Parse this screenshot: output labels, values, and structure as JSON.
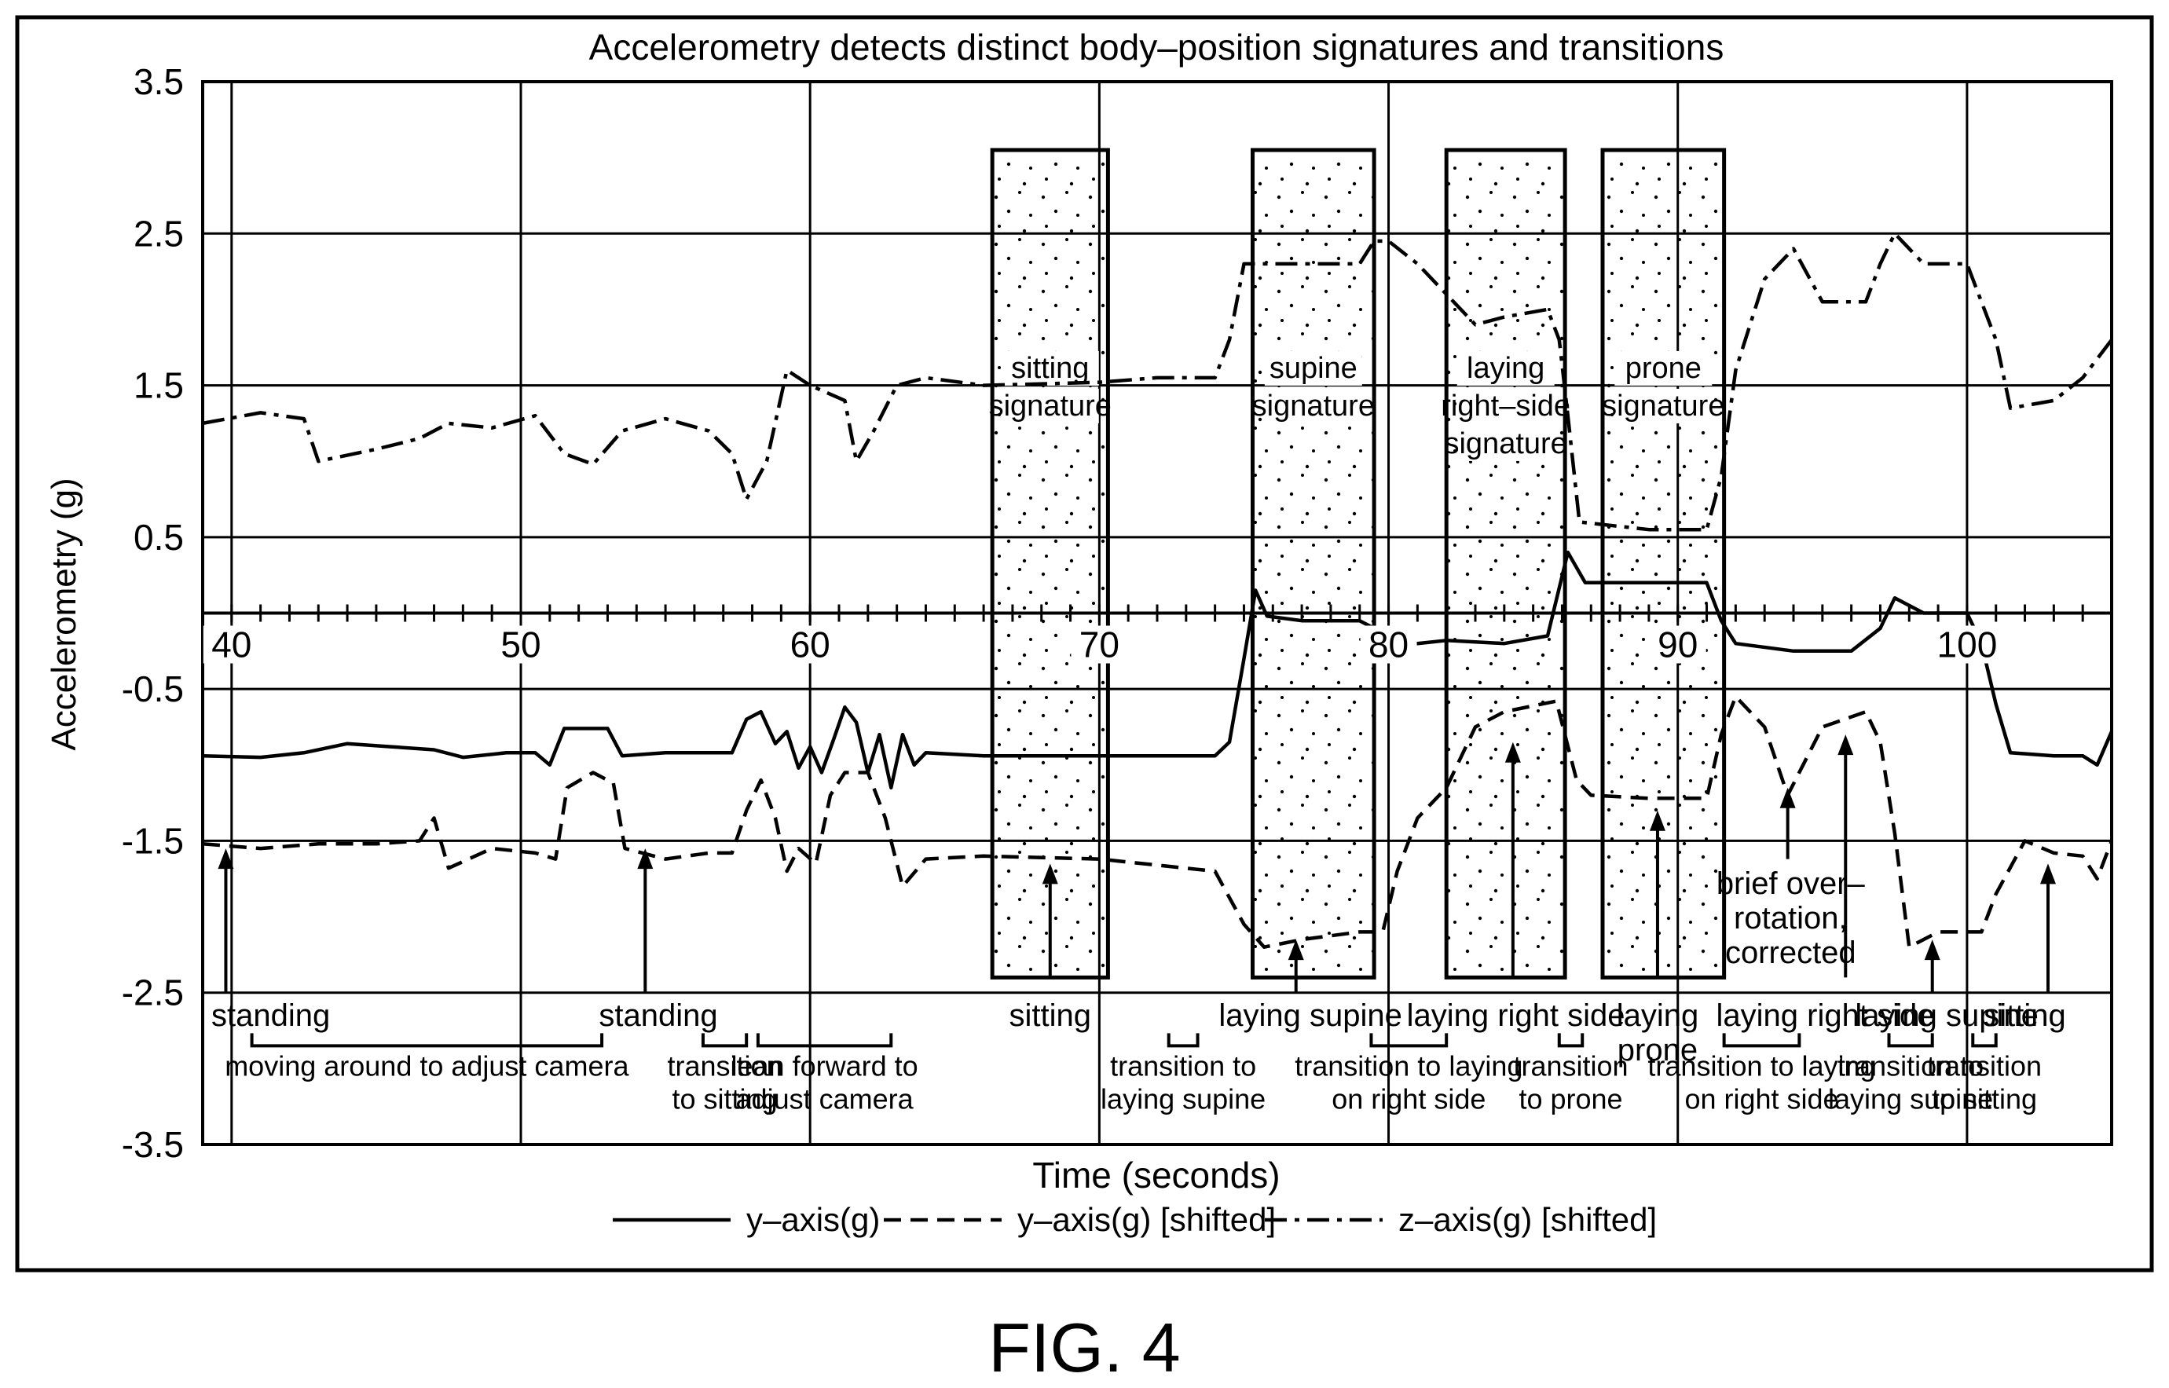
{
  "figure_label": "FIG. 4",
  "chart_data": {
    "type": "line",
    "title": "Accelerometry detects distinct body–position signatures and transitions",
    "xlabel": "Time  (seconds)",
    "ylabel": "Accelerometry (g)",
    "xlim": [
      39,
      105
    ],
    "ylim": [
      -3.5,
      3.5
    ],
    "x_ticks": [
      40,
      50,
      60,
      70,
      80,
      90,
      100
    ],
    "x_tick_labels": [
      "40",
      "50",
      "60",
      "70",
      "80",
      "90",
      "100"
    ],
    "y_ticks": [
      3.5,
      2.5,
      1.5,
      0.5,
      -0.5,
      -1.5,
      -2.5,
      -3.5
    ],
    "y_tick_labels": [
      "3.5",
      "2.5",
      "1.5",
      "0.5",
      "-0.5",
      "-1.5",
      "-2.5",
      "-3.5"
    ],
    "grid": true,
    "legend_position": "bottom-center",
    "series": [
      {
        "name": "y–axis(g)",
        "style": "solid",
        "points": [
          [
            39,
            -0.94
          ],
          [
            41,
            -0.95
          ],
          [
            42.5,
            -0.92
          ],
          [
            44,
            -0.86
          ],
          [
            45.5,
            -0.88
          ],
          [
            47,
            -0.9
          ],
          [
            48,
            -0.95
          ],
          [
            49.5,
            -0.92
          ],
          [
            50.5,
            -0.92
          ],
          [
            51,
            -1.0
          ],
          [
            51.5,
            -0.76
          ],
          [
            53,
            -0.76
          ],
          [
            53.5,
            -0.94
          ],
          [
            55,
            -0.92
          ],
          [
            56.5,
            -0.92
          ],
          [
            57.3,
            -0.92
          ],
          [
            57.8,
            -0.7
          ],
          [
            58.3,
            -0.65
          ],
          [
            58.8,
            -0.86
          ],
          [
            59.2,
            -0.78
          ],
          [
            59.6,
            -1.02
          ],
          [
            60,
            -0.88
          ],
          [
            60.4,
            -1.05
          ],
          [
            60.8,
            -0.84
          ],
          [
            61.2,
            -0.62
          ],
          [
            61.6,
            -0.72
          ],
          [
            62,
            -1.05
          ],
          [
            62.4,
            -0.8
          ],
          [
            62.8,
            -1.15
          ],
          [
            63.2,
            -0.8
          ],
          [
            63.6,
            -1.0
          ],
          [
            64,
            -0.92
          ],
          [
            66,
            -0.94
          ],
          [
            70,
            -0.94
          ],
          [
            74,
            -0.94
          ],
          [
            74.5,
            -0.85
          ],
          [
            75,
            -0.3
          ],
          [
            75.4,
            0.15
          ],
          [
            75.8,
            -0.02
          ],
          [
            77,
            -0.05
          ],
          [
            79,
            -0.05
          ],
          [
            79.5,
            -0.1
          ],
          [
            80,
            -0.2
          ],
          [
            81,
            -0.2
          ],
          [
            82,
            -0.18
          ],
          [
            84,
            -0.2
          ],
          [
            85.5,
            -0.15
          ],
          [
            86.2,
            0.4
          ],
          [
            86.8,
            0.2
          ],
          [
            89,
            0.2
          ],
          [
            91,
            0.2
          ],
          [
            91.5,
            -0.05
          ],
          [
            92,
            -0.2
          ],
          [
            94,
            -0.25
          ],
          [
            96,
            -0.25
          ],
          [
            97,
            -0.1
          ],
          [
            97.5,
            0.1
          ],
          [
            98.5,
            0.0
          ],
          [
            100,
            0.0
          ],
          [
            100.5,
            -0.2
          ],
          [
            101,
            -0.6
          ],
          [
            101.5,
            -0.92
          ],
          [
            103,
            -0.94
          ],
          [
            104,
            -0.94
          ],
          [
            104.5,
            -1.0
          ],
          [
            105,
            -0.78
          ]
        ]
      },
      {
        "name": "y–axis(g) [shifted]",
        "style": "dashed",
        "points": [
          [
            39,
            -1.52
          ],
          [
            41,
            -1.55
          ],
          [
            43,
            -1.52
          ],
          [
            45,
            -1.52
          ],
          [
            46.5,
            -1.5
          ],
          [
            47,
            -1.35
          ],
          [
            47.5,
            -1.68
          ],
          [
            49,
            -1.55
          ],
          [
            50.5,
            -1.58
          ],
          [
            51.2,
            -1.62
          ],
          [
            51.6,
            -1.15
          ],
          [
            52.5,
            -1.05
          ],
          [
            53.2,
            -1.12
          ],
          [
            53.6,
            -1.55
          ],
          [
            55,
            -1.62
          ],
          [
            56.5,
            -1.58
          ],
          [
            57.3,
            -1.58
          ],
          [
            57.8,
            -1.3
          ],
          [
            58.3,
            -1.1
          ],
          [
            58.8,
            -1.35
          ],
          [
            59.2,
            -1.7
          ],
          [
            59.6,
            -1.55
          ],
          [
            60.2,
            -1.65
          ],
          [
            60.7,
            -1.2
          ],
          [
            61.2,
            -1.05
          ],
          [
            62,
            -1.05
          ],
          [
            62.6,
            -1.35
          ],
          [
            63.2,
            -1.8
          ],
          [
            64,
            -1.62
          ],
          [
            66,
            -1.6
          ],
          [
            70,
            -1.62
          ],
          [
            74,
            -1.7
          ],
          [
            75,
            -2.05
          ],
          [
            75.7,
            -2.2
          ],
          [
            77,
            -2.15
          ],
          [
            79,
            -2.1
          ],
          [
            79.8,
            -2.1
          ],
          [
            80.3,
            -1.7
          ],
          [
            81,
            -1.35
          ],
          [
            82,
            -1.15
          ],
          [
            83,
            -0.75
          ],
          [
            84,
            -0.65
          ],
          [
            85.8,
            -0.58
          ],
          [
            86.5,
            -1.1
          ],
          [
            87,
            -1.2
          ],
          [
            89,
            -1.22
          ],
          [
            91,
            -1.22
          ],
          [
            91.5,
            -0.8
          ],
          [
            92,
            -0.55
          ],
          [
            93,
            -0.75
          ],
          [
            93.8,
            -1.2
          ],
          [
            95,
            -0.75
          ],
          [
            96.5,
            -0.65
          ],
          [
            97,
            -0.85
          ],
          [
            97.5,
            -1.45
          ],
          [
            98,
            -2.2
          ],
          [
            99,
            -2.1
          ],
          [
            100.5,
            -2.1
          ],
          [
            101,
            -1.85
          ],
          [
            102,
            -1.5
          ],
          [
            103,
            -1.58
          ],
          [
            104,
            -1.6
          ],
          [
            104.5,
            -1.75
          ],
          [
            105,
            -1.5
          ]
        ]
      },
      {
        "name": "z–axis(g) [shifted]",
        "style": "dashdot",
        "points": [
          [
            39,
            1.25
          ],
          [
            41,
            1.32
          ],
          [
            42.5,
            1.28
          ],
          [
            43,
            1.0
          ],
          [
            45,
            1.08
          ],
          [
            46.5,
            1.15
          ],
          [
            47.5,
            1.25
          ],
          [
            49,
            1.22
          ],
          [
            50.5,
            1.3
          ],
          [
            51.5,
            1.05
          ],
          [
            52.5,
            0.98
          ],
          [
            53.5,
            1.2
          ],
          [
            55,
            1.28
          ],
          [
            56.5,
            1.2
          ],
          [
            57.3,
            1.05
          ],
          [
            57.8,
            0.75
          ],
          [
            58.5,
            1.0
          ],
          [
            59.2,
            1.6
          ],
          [
            60,
            1.5
          ],
          [
            61.2,
            1.4
          ],
          [
            61.6,
            1.0
          ],
          [
            62.2,
            1.2
          ],
          [
            63,
            1.5
          ],
          [
            64,
            1.55
          ],
          [
            66,
            1.5
          ],
          [
            70,
            1.52
          ],
          [
            72,
            1.55
          ],
          [
            74,
            1.55
          ],
          [
            74.5,
            1.8
          ],
          [
            75,
            2.3
          ],
          [
            75.5,
            2.3
          ],
          [
            77,
            2.3
          ],
          [
            79,
            2.3
          ],
          [
            79.5,
            2.45
          ],
          [
            80,
            2.45
          ],
          [
            81,
            2.3
          ],
          [
            82,
            2.1
          ],
          [
            83,
            1.9
          ],
          [
            84,
            1.95
          ],
          [
            85.5,
            2.0
          ],
          [
            85.9,
            1.8
          ],
          [
            86.2,
            1.3
          ],
          [
            86.6,
            0.6
          ],
          [
            89,
            0.55
          ],
          [
            91,
            0.55
          ],
          [
            91.5,
            0.9
          ],
          [
            92,
            1.6
          ],
          [
            93,
            2.2
          ],
          [
            94,
            2.4
          ],
          [
            95,
            2.05
          ],
          [
            96.5,
            2.05
          ],
          [
            97,
            2.3
          ],
          [
            97.5,
            2.5
          ],
          [
            98.5,
            2.3
          ],
          [
            100,
            2.3
          ],
          [
            100.5,
            2.05
          ],
          [
            101,
            1.8
          ],
          [
            101.5,
            1.35
          ],
          [
            103,
            1.4
          ],
          [
            104,
            1.55
          ],
          [
            105,
            1.8
          ]
        ]
      }
    ],
    "signature_boxes": [
      {
        "x0": 66.3,
        "x1": 70.3,
        "y0": -2.4,
        "y1": 3.05,
        "label_lines": [
          "sitting",
          "signature"
        ]
      },
      {
        "x0": 75.3,
        "x1": 79.5,
        "y0": -2.4,
        "y1": 3.05,
        "label_lines": [
          "supine",
          "signature"
        ]
      },
      {
        "x0": 82.0,
        "x1": 86.1,
        "y0": -2.4,
        "y1": 3.05,
        "label_lines": [
          "laying",
          "right–side",
          "signature"
        ]
      },
      {
        "x0": 87.4,
        "x1": 91.6,
        "y0": -2.4,
        "y1": 3.05,
        "label_lines": [
          "prone",
          "signature"
        ]
      }
    ],
    "arrows": [
      {
        "x": 39.8,
        "y_from": -2.5,
        "y_to": -1.55
      },
      {
        "x": 54.3,
        "y_from": -2.5,
        "y_to": -1.55
      },
      {
        "x": 68.3,
        "y_from": -2.4,
        "y_to": -1.65
      },
      {
        "x": 76.8,
        "y_from": -2.5,
        "y_to": -2.15
      },
      {
        "x": 84.3,
        "y_from": -2.4,
        "y_to": -0.85
      },
      {
        "x": 89.3,
        "y_from": -2.4,
        "y_to": -1.3
      },
      {
        "x": 93.8,
        "y_from": -1.62,
        "y_to": -1.15
      },
      {
        "x": 95.8,
        "y_from": -2.4,
        "y_to": -0.8
      },
      {
        "x": 98.8,
        "y_from": -2.5,
        "y_to": -2.15
      },
      {
        "x": 102.8,
        "y_from": -2.5,
        "y_to": -1.65
      }
    ],
    "position_labels": [
      {
        "x": 39.3,
        "y": -2.72,
        "lines": [
          "standing"
        ],
        "align": "start"
      },
      {
        "x": 52.7,
        "y": -2.72,
        "lines": [
          "standing"
        ],
        "align": "start"
      },
      {
        "x": 68.3,
        "y": -2.72,
        "lines": [
          "sitting"
        ],
        "align": "middle"
      },
      {
        "x": 77.3,
        "y": -2.72,
        "lines": [
          "laying  supine"
        ],
        "align": "middle"
      },
      {
        "x": 84.4,
        "y": -2.72,
        "lines": [
          "laying  right side"
        ],
        "align": "middle"
      },
      {
        "x": 89.3,
        "y": -2.72,
        "lines": [
          "laying",
          "prone"
        ],
        "align": "middle"
      },
      {
        "x": 93.9,
        "y": -1.85,
        "lines": [
          "brief over–",
          "rotation,",
          "corrected"
        ],
        "align": "middle"
      },
      {
        "x": 95.1,
        "y": -2.72,
        "lines": [
          "laying  right side"
        ],
        "align": "middle"
      },
      {
        "x": 99.3,
        "y": -2.72,
        "lines": [
          "laying  supine"
        ],
        "align": "middle"
      },
      {
        "x": 102.0,
        "y": -2.72,
        "lines": [
          "sitting"
        ],
        "align": "middle"
      }
    ],
    "transitions": [
      {
        "x0": 40.7,
        "x1": 52.8,
        "lines": [
          "moving  around  to  adjust camera"
        ]
      },
      {
        "x0": 56.3,
        "x1": 57.8,
        "lines": [
          "transition",
          "to sitting"
        ]
      },
      {
        "x0": 58.2,
        "x1": 62.8,
        "lines": [
          "lean  forward  to",
          "adjust camera"
        ]
      },
      {
        "x0": 72.4,
        "x1": 73.4,
        "lines": [
          "transition  to",
          "laying  supine"
        ]
      },
      {
        "x0": 79.4,
        "x1": 82.0,
        "lines": [
          "transition  to  laying",
          "on  right side"
        ]
      },
      {
        "x0": 85.9,
        "x1": 86.7,
        "lines": [
          "transition",
          "to  prone"
        ]
      },
      {
        "x0": 91.6,
        "x1": 94.2,
        "lines": [
          "transition to laying",
          "on right side"
        ]
      },
      {
        "x0": 97.3,
        "x1": 98.8,
        "lines": [
          "transition to",
          "laying supine"
        ]
      },
      {
        "x0": 100.2,
        "x1": 101.0,
        "lines": [
          "transition",
          "to sitting"
        ]
      }
    ],
    "legend": [
      {
        "label": "y–axis(g)",
        "style": "solid"
      },
      {
        "label": "y–axis(g) [shifted]",
        "style": "dashed"
      },
      {
        "label": "z–axis(g) [shifted]",
        "style": "dashdot"
      }
    ]
  }
}
